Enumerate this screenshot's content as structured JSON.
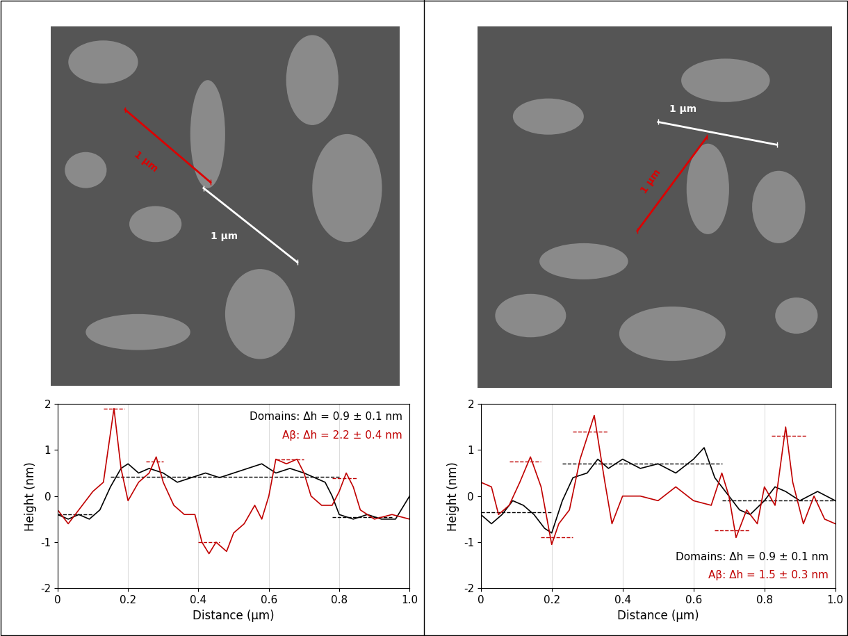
{
  "chart_data": [
    {
      "type": "line",
      "x_label": "Distance (µm)",
      "y_label": "Height (nm)",
      "xlim": [
        0,
        1.0
      ],
      "ylim": [
        -2,
        2
      ],
      "xticks": [
        0,
        0.2,
        0.4,
        0.6,
        0.8,
        1.0
      ],
      "yticks": [
        -2,
        -1,
        0,
        1,
        2
      ],
      "annotations": [
        {
          "text": "Domains: Δh = 0.9 ± 0.1 nm",
          "color": "#000000"
        },
        {
          "text": "Aβ: Δh = 2.2 ± 0.4 nm",
          "color": "#c00000"
        }
      ],
      "series": [
        {
          "color": "#000000",
          "x": [
            0,
            0.03,
            0.06,
            0.09,
            0.12,
            0.15,
            0.18,
            0.2,
            0.23,
            0.26,
            0.3,
            0.34,
            0.38,
            0.42,
            0.46,
            0.5,
            0.54,
            0.58,
            0.62,
            0.66,
            0.7,
            0.73,
            0.76,
            0.78,
            0.8,
            0.84,
            0.88,
            0.92,
            0.96,
            1.0
          ],
          "values": [
            -0.4,
            -0.5,
            -0.4,
            -0.5,
            -0.3,
            0.2,
            0.6,
            0.7,
            0.5,
            0.6,
            0.5,
            0.3,
            0.4,
            0.5,
            0.4,
            0.5,
            0.6,
            0.7,
            0.5,
            0.6,
            0.5,
            0.4,
            0.3,
            0.0,
            -0.4,
            -0.5,
            -0.4,
            -0.5,
            -0.5,
            0.0
          ],
          "levels": [
            {
              "x": [
                0.0,
                0.1
              ],
              "y": -0.4
            },
            {
              "x": [
                0.15,
                0.8
              ],
              "y": 0.42
            },
            {
              "x": [
                0.78,
                0.95
              ],
              "y": -0.45
            }
          ]
        },
        {
          "color": "#c00000",
          "x": [
            0,
            0.03,
            0.06,
            0.1,
            0.13,
            0.16,
            0.18,
            0.2,
            0.23,
            0.26,
            0.28,
            0.3,
            0.33,
            0.36,
            0.39,
            0.41,
            0.43,
            0.45,
            0.48,
            0.5,
            0.53,
            0.56,
            0.58,
            0.6,
            0.62,
            0.65,
            0.68,
            0.7,
            0.72,
            0.75,
            0.78,
            0.8,
            0.82,
            0.84,
            0.86,
            0.9,
            0.95,
            1.0
          ],
          "values": [
            -0.3,
            -0.6,
            -0.3,
            0.1,
            0.3,
            1.9,
            0.6,
            -0.1,
            0.3,
            0.5,
            0.85,
            0.3,
            -0.2,
            -0.4,
            -0.4,
            -1.0,
            -1.25,
            -1.0,
            -1.2,
            -0.8,
            -0.6,
            -0.2,
            -0.5,
            0.0,
            0.8,
            0.7,
            0.8,
            0.5,
            0.0,
            -0.2,
            -0.2,
            0.1,
            0.5,
            0.2,
            -0.3,
            -0.5,
            -0.4,
            -0.5
          ],
          "levels": [
            {
              "x": [
                0.13,
                0.19
              ],
              "y": 1.9
            },
            {
              "x": [
                0.25,
                0.3
              ],
              "y": 0.75
            },
            {
              "x": [
                0.4,
                0.46
              ],
              "y": -1.0
            },
            {
              "x": [
                0.62,
                0.7
              ],
              "y": 0.8
            },
            {
              "x": [
                0.78,
                0.85
              ],
              "y": 0.38
            }
          ]
        }
      ]
    },
    {
      "type": "line",
      "x_label": "Distance (µm)",
      "y_label": "Height (nm)",
      "xlim": [
        0,
        1.0
      ],
      "ylim": [
        -2,
        2
      ],
      "xticks": [
        0,
        0.2,
        0.4,
        0.6,
        0.8,
        1.0
      ],
      "yticks": [
        -2,
        -1,
        0,
        1,
        2
      ],
      "annotations": [
        {
          "text": "Domains: Δh = 0.9 ± 0.1 nm",
          "color": "#000000"
        },
        {
          "text": "Aβ: Δh = 1.5 ± 0.3 nm",
          "color": "#c00000"
        }
      ],
      "series": [
        {
          "color": "#000000",
          "x": [
            0,
            0.03,
            0.06,
            0.09,
            0.12,
            0.15,
            0.18,
            0.2,
            0.23,
            0.26,
            0.3,
            0.33,
            0.36,
            0.4,
            0.45,
            0.5,
            0.55,
            0.6,
            0.63,
            0.66,
            0.7,
            0.73,
            0.76,
            0.8,
            0.83,
            0.86,
            0.9,
            0.95,
            1.0
          ],
          "values": [
            -0.4,
            -0.6,
            -0.4,
            -0.1,
            -0.2,
            -0.4,
            -0.7,
            -0.8,
            -0.1,
            0.4,
            0.5,
            0.8,
            0.6,
            0.8,
            0.6,
            0.7,
            0.5,
            0.8,
            1.05,
            0.4,
            0.0,
            -0.3,
            -0.4,
            -0.1,
            0.2,
            0.1,
            -0.1,
            0.1,
            -0.1
          ],
          "levels": [
            {
              "x": [
                0.0,
                0.2
              ],
              "y": -0.35
            },
            {
              "x": [
                0.23,
                0.68
              ],
              "y": 0.7
            },
            {
              "x": [
                0.68,
                1.0
              ],
              "y": -0.1
            }
          ]
        },
        {
          "color": "#c00000",
          "x": [
            0,
            0.03,
            0.05,
            0.08,
            0.11,
            0.14,
            0.17,
            0.2,
            0.22,
            0.25,
            0.28,
            0.32,
            0.35,
            0.37,
            0.4,
            0.45,
            0.5,
            0.55,
            0.6,
            0.65,
            0.68,
            0.7,
            0.72,
            0.75,
            0.78,
            0.8,
            0.83,
            0.86,
            0.88,
            0.91,
            0.94,
            0.97,
            1.0
          ],
          "values": [
            0.3,
            0.2,
            -0.4,
            -0.2,
            0.3,
            0.85,
            0.2,
            -1.05,
            -0.6,
            -0.3,
            0.8,
            1.75,
            0.3,
            -0.6,
            0.0,
            0.0,
            -0.1,
            0.2,
            -0.1,
            -0.2,
            0.5,
            0.0,
            -0.9,
            -0.3,
            -0.6,
            0.2,
            -0.2,
            1.5,
            0.3,
            -0.6,
            0.0,
            -0.5,
            -0.6
          ],
          "levels": [
            {
              "x": [
                0.08,
                0.17
              ],
              "y": 0.75
            },
            {
              "x": [
                0.17,
                0.26
              ],
              "y": -0.9
            },
            {
              "x": [
                0.26,
                0.36
              ],
              "y": 1.4
            },
            {
              "x": [
                0.66,
                0.76
              ],
              "y": -0.75
            },
            {
              "x": [
                0.82,
                0.92
              ],
              "y": 1.3
            }
          ]
        }
      ]
    }
  ],
  "images": [
    {
      "labels": [
        {
          "text": "1 µm",
          "color": "#dd0000"
        },
        {
          "text": "1 µm",
          "color": "#ffffff"
        }
      ]
    },
    {
      "labels": [
        {
          "text": "1 µm",
          "color": "#ffffff"
        },
        {
          "text": "1 µm",
          "color": "#dd0000"
        }
      ]
    }
  ]
}
